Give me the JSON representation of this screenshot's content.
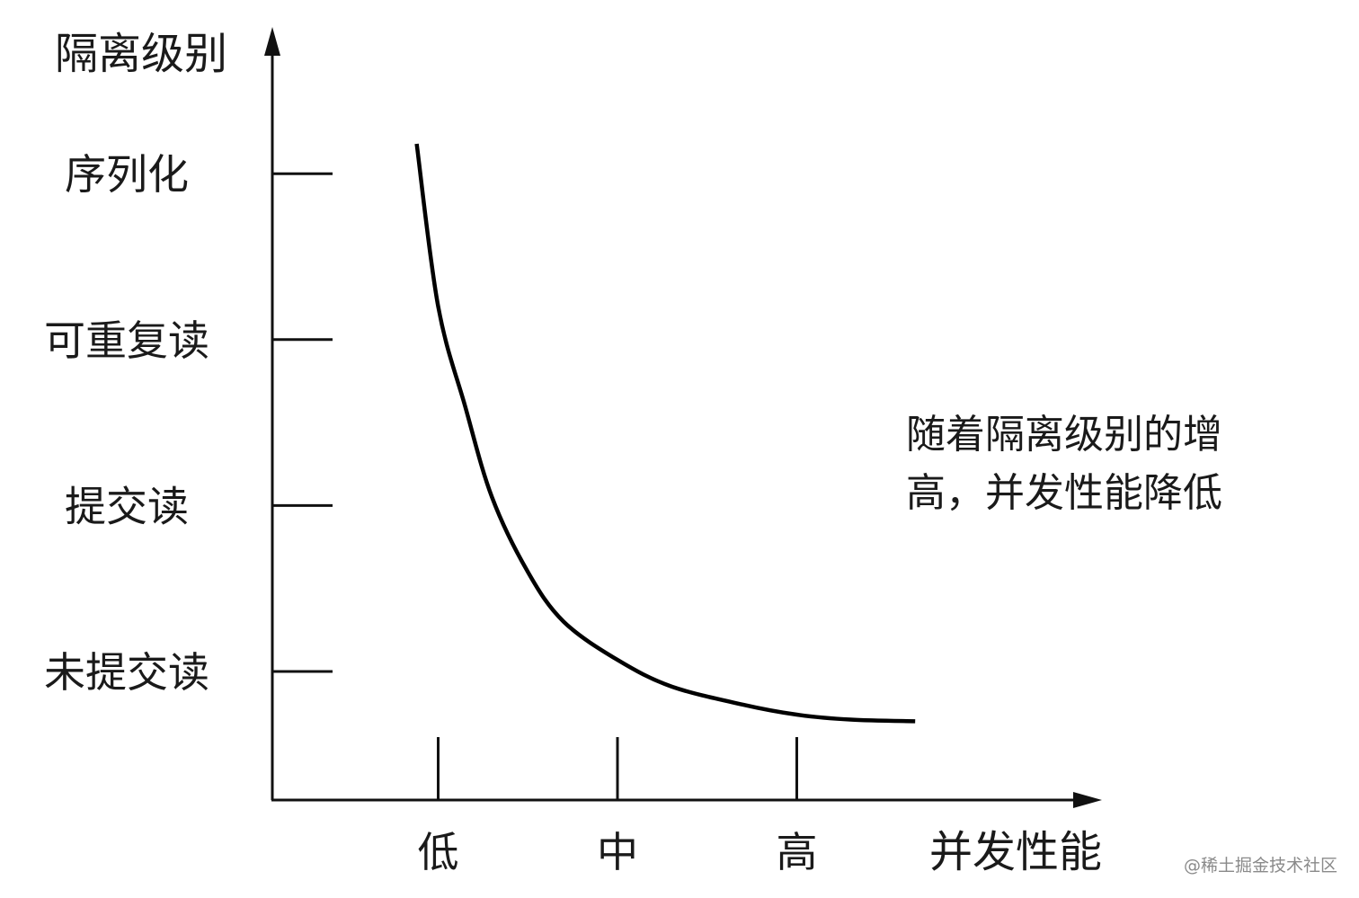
{
  "chart_data": {
    "type": "line",
    "ylabel": "隔离级别",
    "xlabel": "并发性能",
    "y_categories": [
      "未提交读",
      "提交读",
      "可重复读",
      "序列化"
    ],
    "x_categories": [
      "低",
      "中",
      "高"
    ],
    "series": [
      {
        "x": [
          0.88,
          1.0,
          1.15,
          1.3,
          1.5,
          1.7,
          2.0,
          2.3,
          2.7,
          3.0,
          3.3,
          3.66
        ],
        "y": [
          4.18,
          3.2,
          2.6,
          2.05,
          1.6,
          1.3,
          1.07,
          0.91,
          0.8,
          0.74,
          0.71,
          0.7
        ]
      }
    ],
    "annotation": [
      "随着隔离级别的增",
      "高，并发性能降低"
    ],
    "grid": false
  },
  "watermark": "@稀土掘金技术社区"
}
